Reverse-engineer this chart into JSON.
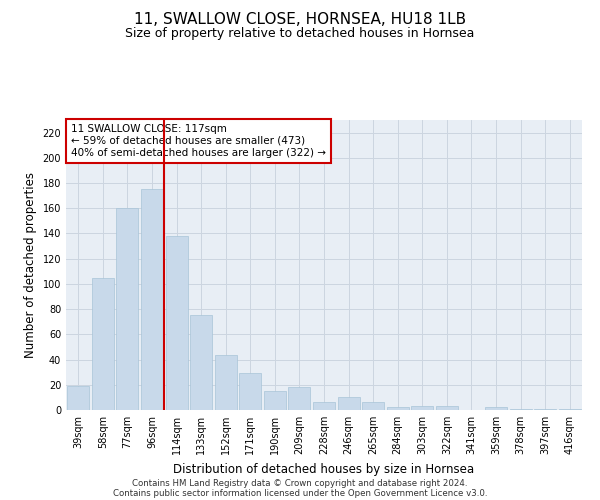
{
  "title": "11, SWALLOW CLOSE, HORNSEA, HU18 1LB",
  "subtitle": "Size of property relative to detached houses in Hornsea",
  "xlabel": "Distribution of detached houses by size in Hornsea",
  "ylabel": "Number of detached properties",
  "categories": [
    "39sqm",
    "58sqm",
    "77sqm",
    "96sqm",
    "114sqm",
    "133sqm",
    "152sqm",
    "171sqm",
    "190sqm",
    "209sqm",
    "228sqm",
    "246sqm",
    "265sqm",
    "284sqm",
    "303sqm",
    "322sqm",
    "341sqm",
    "359sqm",
    "378sqm",
    "397sqm",
    "416sqm"
  ],
  "values": [
    19,
    105,
    160,
    175,
    138,
    75,
    44,
    29,
    15,
    18,
    6,
    10,
    6,
    2,
    3,
    3,
    0,
    2,
    1,
    1,
    1
  ],
  "bar_color": "#c8d9ea",
  "bar_edgecolor": "#a8c4d8",
  "vline_x_index": 4,
  "vline_color": "#cc0000",
  "annotation_line1": "11 SWALLOW CLOSE: 117sqm",
  "annotation_line2": "← 59% of detached houses are smaller (473)",
  "annotation_line3": "40% of semi-detached houses are larger (322) →",
  "annotation_box_color": "#ffffff",
  "annotation_box_edgecolor": "#cc0000",
  "ylim": [
    0,
    230
  ],
  "yticks": [
    0,
    20,
    40,
    60,
    80,
    100,
    120,
    140,
    160,
    180,
    200,
    220
  ],
  "grid_color": "#ccd5e0",
  "background_color": "#e8eef5",
  "footer_line1": "Contains HM Land Registry data © Crown copyright and database right 2024.",
  "footer_line2": "Contains public sector information licensed under the Open Government Licence v3.0.",
  "title_fontsize": 11,
  "subtitle_fontsize": 9,
  "xlabel_fontsize": 8.5,
  "ylabel_fontsize": 8.5,
  "tick_fontsize": 7
}
